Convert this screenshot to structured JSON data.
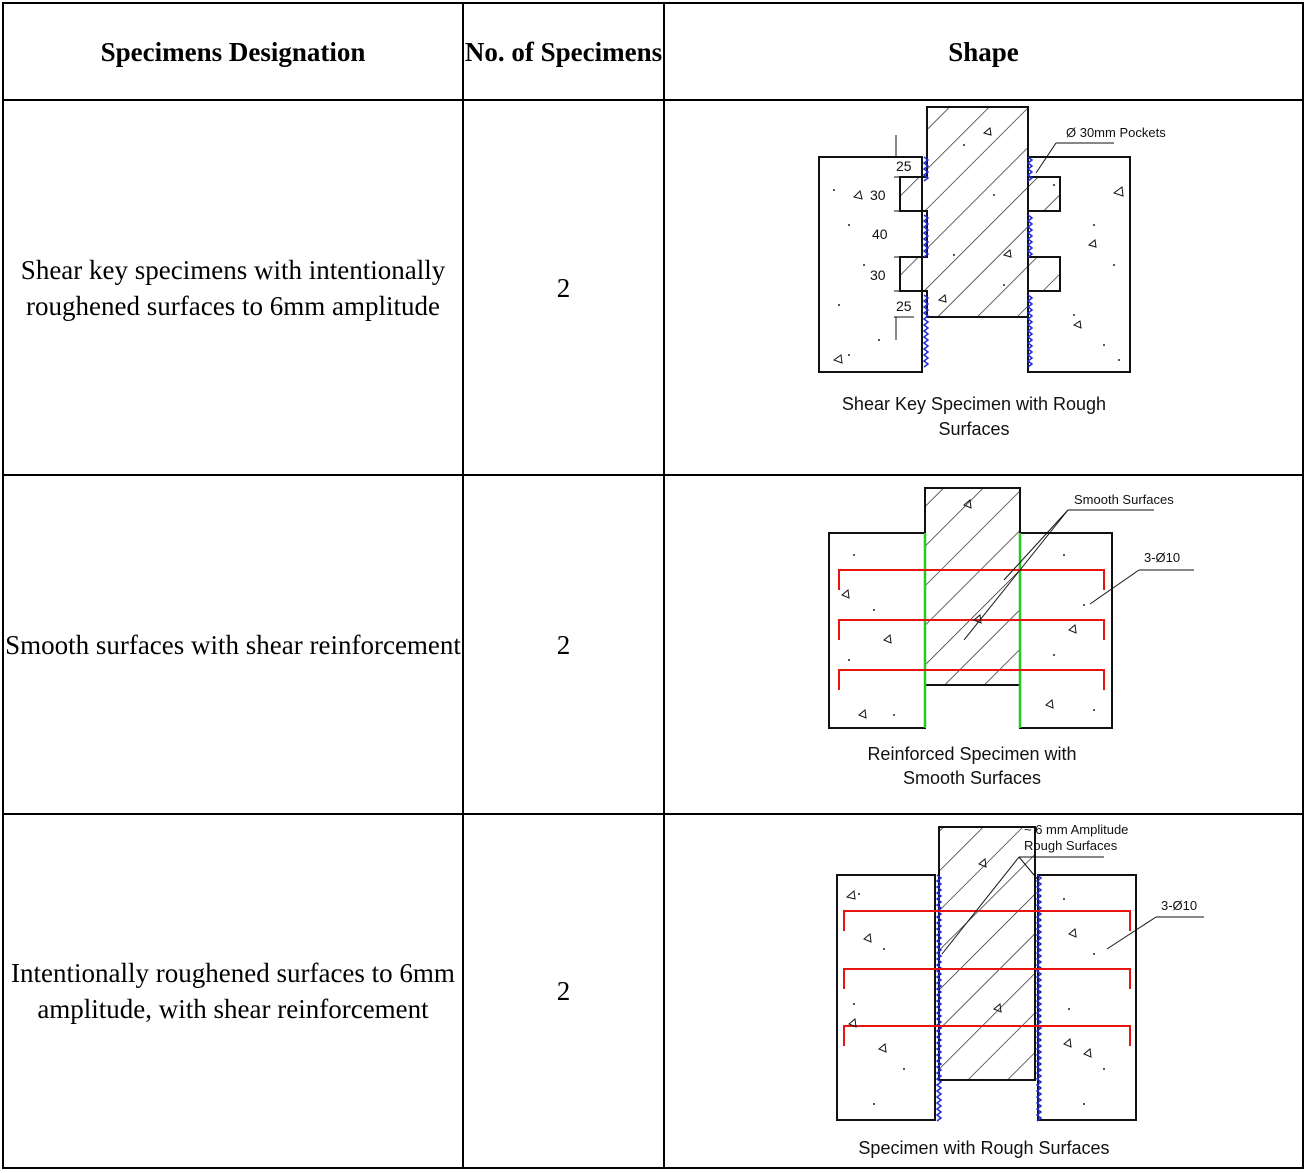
{
  "table": {
    "headers": {
      "designation": "Specimens Designation",
      "count": "No. of Specimens",
      "shape": "Shape"
    },
    "rows": [
      {
        "designation": "Shear key specimens with intentionally roughened surfaces to 6mm amplitude",
        "count": "2",
        "figure": {
          "caption_line1": "Shear Key Specimen with Rough",
          "caption_line2": "Surfaces",
          "pocket_label": "Ø 30mm Pockets",
          "dims": [
            "25",
            "30",
            "40",
            "30",
            "25"
          ]
        }
      },
      {
        "designation": "Smooth surfaces with shear reinforcement",
        "count": "2",
        "figure": {
          "caption_line1": "Reinforced Specimen with",
          "caption_line2": "Smooth Surfaces",
          "surface_label": "Smooth Surfaces",
          "bar_label": "3-Ø10"
        }
      },
      {
        "designation": "Intentionally roughened surfaces to 6mm amplitude, with shear reinforcement",
        "count": "2",
        "figure": {
          "caption_line1": "Specimen with Rough Surfaces",
          "surface_label_line1": "~ 6 mm Amplitude",
          "surface_label_line2": "Rough Surfaces",
          "bar_label": "3-Ø10"
        }
      }
    ]
  },
  "colors": {
    "border": "#000000",
    "rough_interface": "#1f2bd6",
    "smooth_interface": "#22cc22",
    "rebar": "#e8140f"
  }
}
